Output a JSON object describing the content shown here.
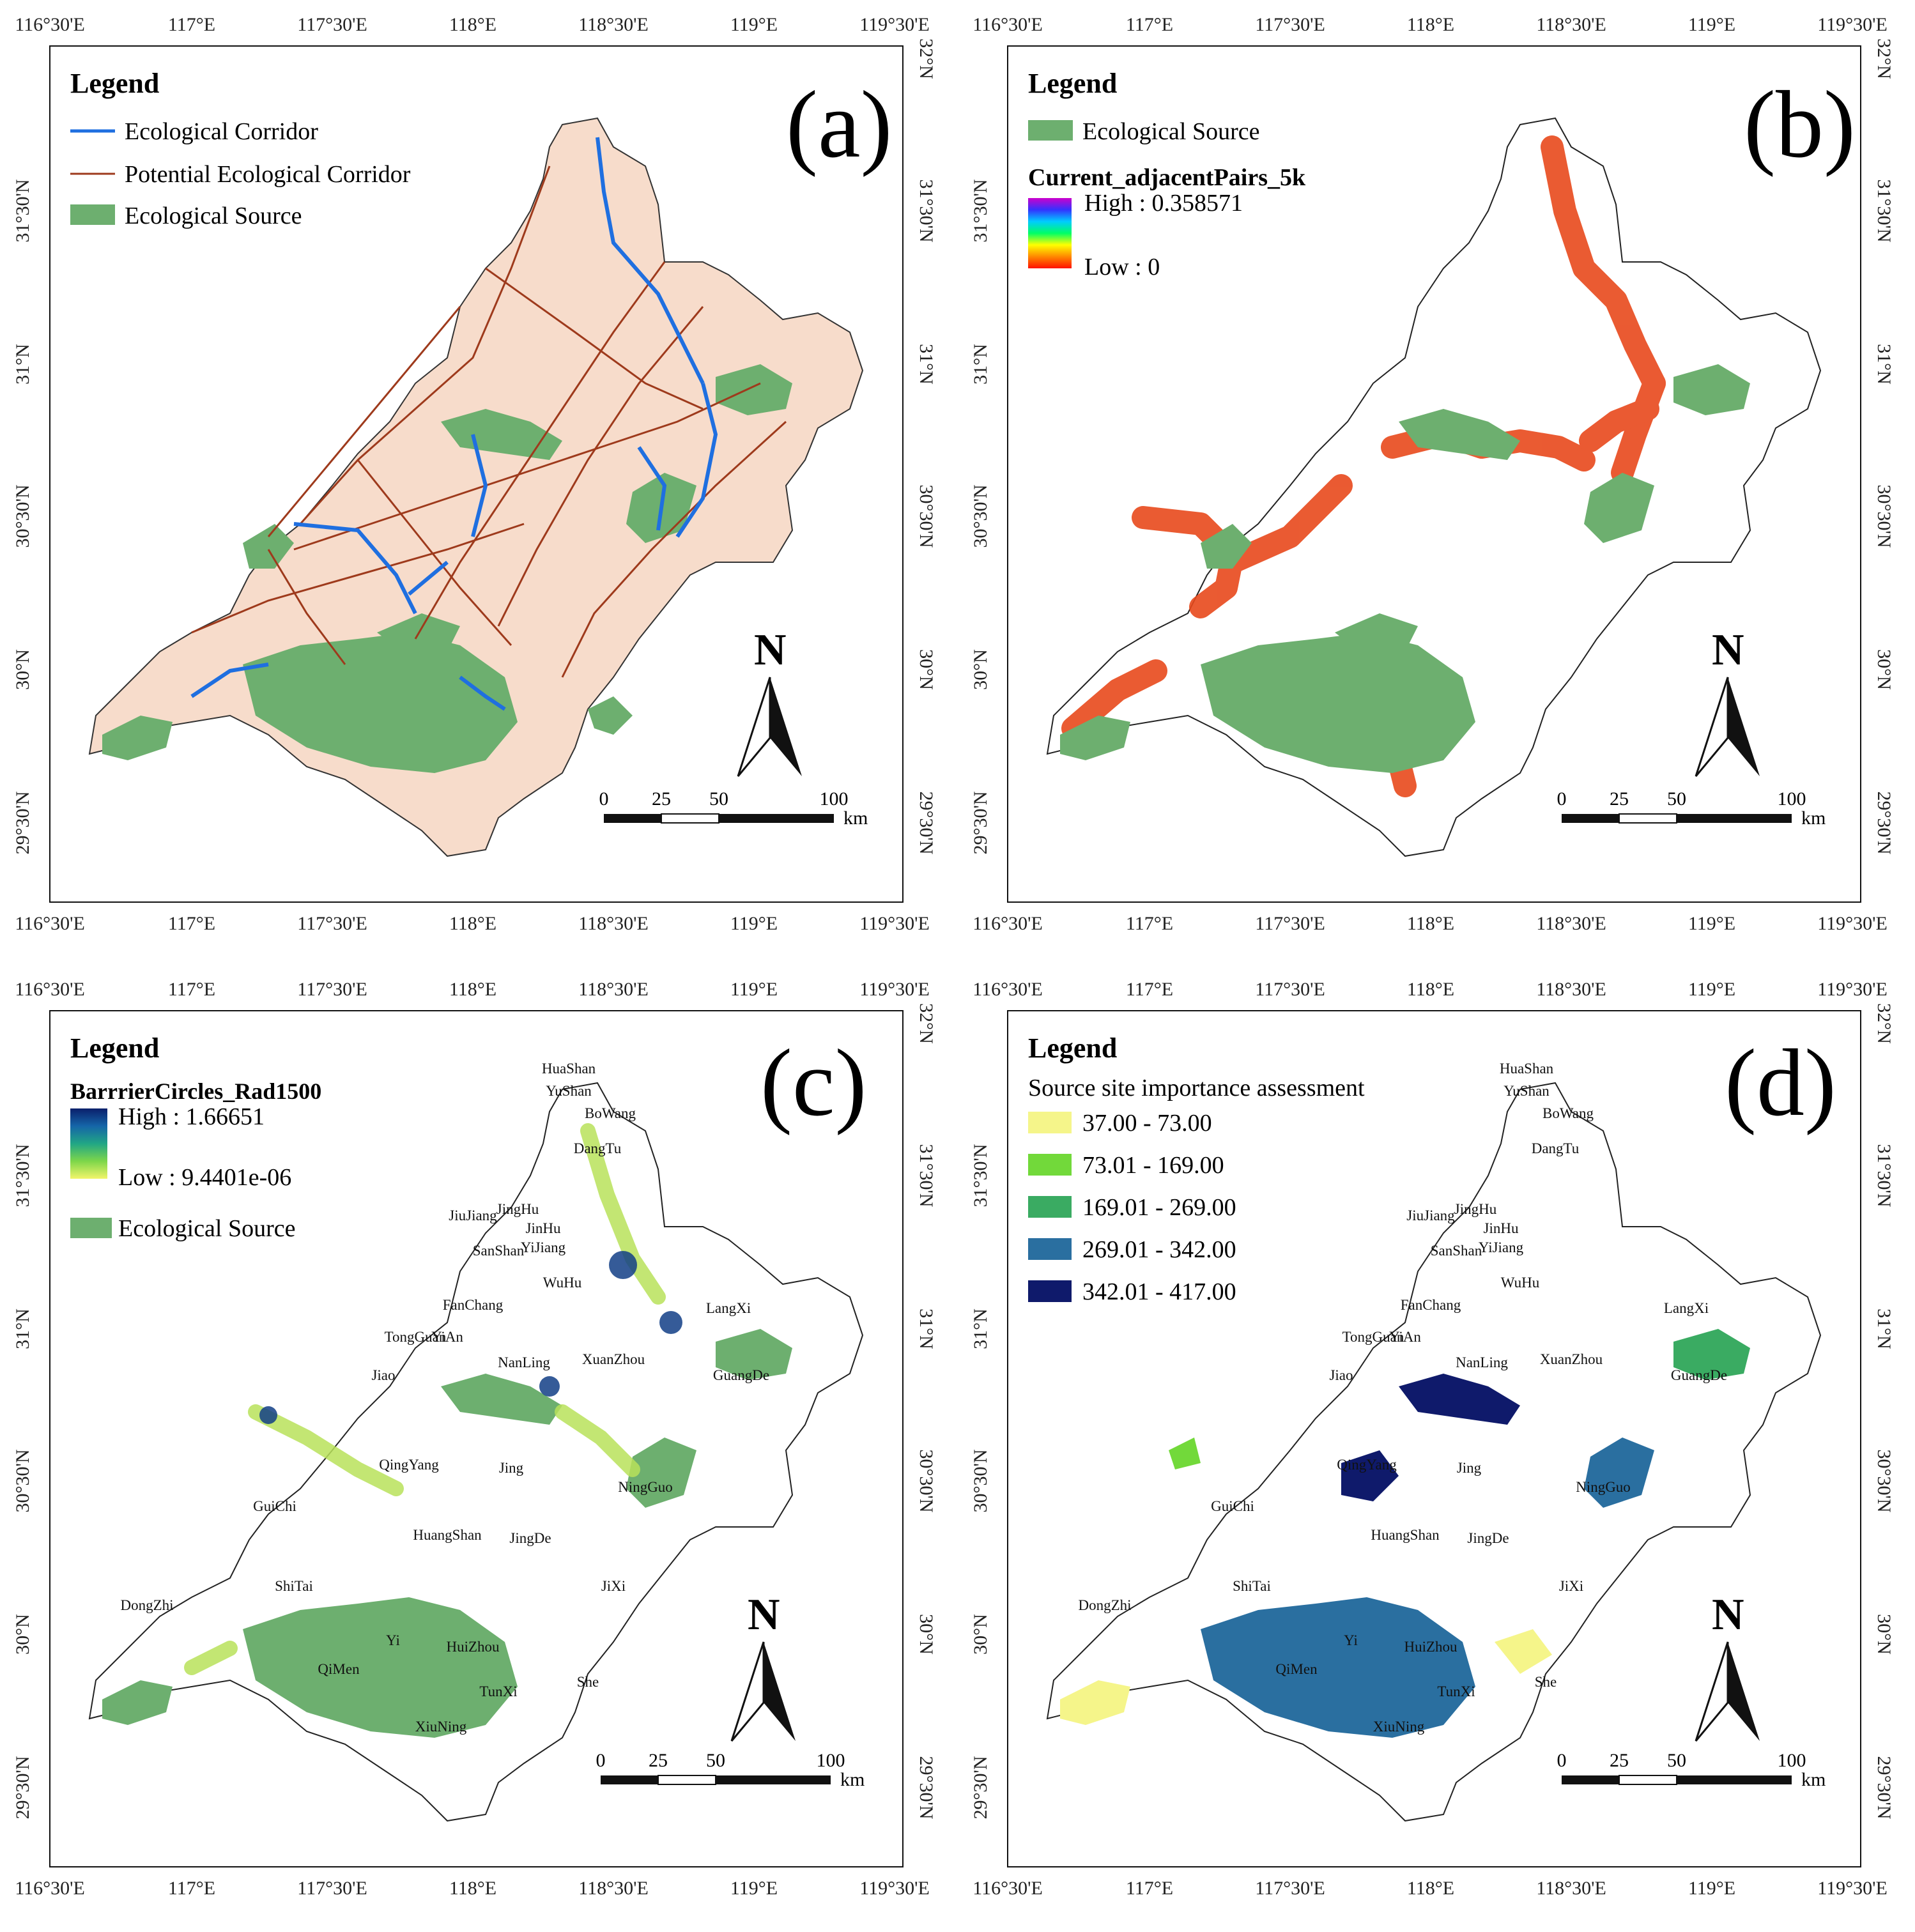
{
  "axes": {
    "top_ticks": [
      "116°30'E",
      "117°E",
      "117°30'E",
      "118°E",
      "118°30'E",
      "119°E",
      "119°30'E"
    ],
    "bottom_ticks": [
      "116°30'E",
      "117°E",
      "117°30'E",
      "118°E",
      "118°30'E",
      "119°E",
      "119°30'E"
    ],
    "right_ticks": [
      "32°N",
      "31°30'N",
      "31°N",
      "30°30'N",
      "30°N",
      "29°30'N"
    ],
    "left_ticks": [
      "31°30'N",
      "31°N",
      "30°30'N",
      "30°N",
      "29°30'N"
    ]
  },
  "scale_bar": {
    "labels": [
      "0",
      "25",
      "50",
      "100"
    ],
    "unit": "km"
  },
  "north_arrow": "N",
  "colors": {
    "ecological_source": "#6daf6f",
    "ecological_corridor": "#1f6fe0",
    "potential_corridor": "#9e3a1c",
    "study_area_fill": "#f7dccb"
  },
  "panels": [
    {
      "tag": "(a)",
      "legend_title": "Legend",
      "legend_items": [
        {
          "label": "Ecological Corridor",
          "symbol": "line",
          "color": "#1f6fe0"
        },
        {
          "label": "Potential Ecological Corridor",
          "symbol": "line",
          "color": "#9e3a1c"
        },
        {
          "label": "Ecological Source",
          "symbol": "patch",
          "color": "#6daf6f"
        }
      ]
    },
    {
      "tag": "(b)",
      "legend_title": "Legend",
      "legend_items": [
        {
          "label": "Ecological Source",
          "symbol": "patch",
          "color": "#6daf6f"
        }
      ],
      "ramp": {
        "title": "Current_adjacentPairs_5k",
        "high": "High : 0.358571",
        "low": "Low : 0",
        "colors": [
          "#cc00cc",
          "#3333ff",
          "#00ccff",
          "#00ff66",
          "#ffff00",
          "#ff8800",
          "#ff1100"
        ]
      }
    },
    {
      "tag": "(c)",
      "legend_title": "Legend",
      "ramp": {
        "title": "BarrrierCircles_Rad1500",
        "high": "High : 1.66651",
        "low": "Low : 9.4401e-06",
        "colors": [
          "#0a1f6b",
          "#1565a8",
          "#21a685",
          "#7dd64a",
          "#f2f56a"
        ]
      },
      "legend_items": [
        {
          "label": "Ecological Source",
          "symbol": "patch",
          "color": "#6daf6f"
        }
      ],
      "county_labels": [
        "HuaShan",
        "YuShan",
        "BoWang",
        "DangTu",
        "JiuJiang",
        "JingHu",
        "JinHu",
        "YiJiang",
        "SanShan",
        "WuHu",
        "FanChang",
        "LangXi",
        "TongGuan",
        "YiAn",
        "Jiao",
        "NanLing",
        "XuanZhou",
        "GuangDe",
        "QingYang",
        "Jing",
        "NingGuo",
        "GuiChi",
        "HuangShan",
        "JingDe",
        "ShiTai",
        "JiXi",
        "DongZhi",
        "Yi",
        "HuiZhou",
        "QiMen",
        "TunXi",
        "She",
        "XiuNing"
      ]
    },
    {
      "tag": "(d)",
      "legend_title": "Legend",
      "legend_subtitle": "Source site importance assessment",
      "classes": [
        {
          "label": "37.00 - 73.00",
          "color": "#f5f58a"
        },
        {
          "label": "73.01 - 169.00",
          "color": "#72d93a"
        },
        {
          "label": "169.01 - 269.00",
          "color": "#3aab62"
        },
        {
          "label": "269.01 - 342.00",
          "color": "#2a6fa0"
        },
        {
          "label": "342.01 - 417.00",
          "color": "#0f1a6b"
        }
      ],
      "county_labels": [
        "HuaShan",
        "YuShan",
        "BoWang",
        "DangTu",
        "JiuJiang",
        "JingHu",
        "JinHu",
        "YiJiang",
        "SanShan",
        "WuHu",
        "FanChang",
        "LangXi",
        "TongGuan",
        "YiAn",
        "Jiao",
        "NanLing",
        "XuanZhou",
        "GuangDe",
        "QingYang",
        "Jing",
        "NingGuo",
        "GuiChi",
        "HuangShan",
        "JingDe",
        "ShiTai",
        "JiXi",
        "DongZhi",
        "Yi",
        "HuiZhou",
        "QiMen",
        "TunXi",
        "She",
        "XiuNing"
      ]
    }
  ]
}
